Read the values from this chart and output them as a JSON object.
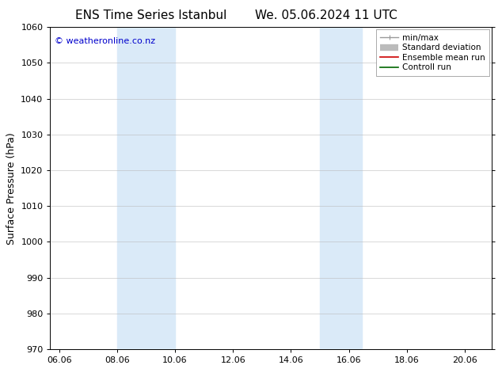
{
  "title_left": "ENS Time Series Istanbul",
  "title_right": "We. 05.06.2024 11 UTC",
  "ylabel": "Surface Pressure (hPa)",
  "ylim": [
    970,
    1060
  ],
  "yticks": [
    970,
    980,
    990,
    1000,
    1010,
    1020,
    1030,
    1040,
    1050,
    1060
  ],
  "xlim_start": 5.75,
  "xlim_end": 21.0,
  "xtick_labels": [
    "06.06",
    "08.06",
    "10.06",
    "12.06",
    "14.06",
    "16.06",
    "18.06",
    "20.06"
  ],
  "xtick_positions": [
    6.06,
    8.06,
    10.06,
    12.06,
    14.06,
    16.06,
    18.06,
    20.06
  ],
  "shaded_regions": [
    {
      "x_start": 8.06,
      "x_end": 10.06,
      "color": "#daeaf8"
    },
    {
      "x_start": 15.06,
      "x_end": 16.5,
      "color": "#daeaf8"
    }
  ],
  "watermark_text": "© weatheronline.co.nz",
  "watermark_color": "#0000cc",
  "legend_items": [
    {
      "label": "min/max",
      "color": "#999999",
      "lw": 1.0
    },
    {
      "label": "Standard deviation",
      "color": "#bbbbbb",
      "lw": 6
    },
    {
      "label": "Ensemble mean run",
      "color": "#cc0000",
      "lw": 1.2
    },
    {
      "label": "Controll run",
      "color": "#006600",
      "lw": 1.2
    }
  ],
  "background_color": "#ffffff",
  "grid_color": "#bbbbbb",
  "title_fontsize": 11,
  "tick_fontsize": 8,
  "ylabel_fontsize": 9,
  "legend_fontsize": 7.5
}
